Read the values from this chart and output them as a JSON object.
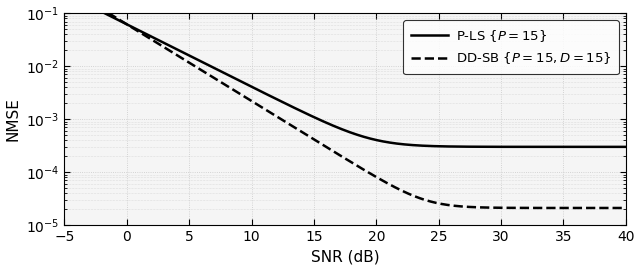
{
  "xlabel": "SNR (dB)",
  "ylabel": "NMSE",
  "xlim": [
    -5,
    40
  ],
  "ylim": [
    1e-05,
    0.1
  ],
  "xticks": [
    -5,
    0,
    5,
    10,
    15,
    20,
    25,
    30,
    35,
    40
  ],
  "legend_pls": "P-LS $\\{P = 15\\}$",
  "legend_ddsb": "DD-SB $\\{P = 15, D = 15\\}$",
  "grid_color": "#c8c8c8",
  "line_color": "black",
  "pls_noise_floor": 0.0003,
  "ddsb_noise_floor": 2.1e-05,
  "pls_scale": 0.062,
  "pls_decay": 0.118,
  "ddsb_scale": 0.062,
  "ddsb_decay": 0.145,
  "figsize": [
    6.4,
    2.7
  ],
  "dpi": 100
}
